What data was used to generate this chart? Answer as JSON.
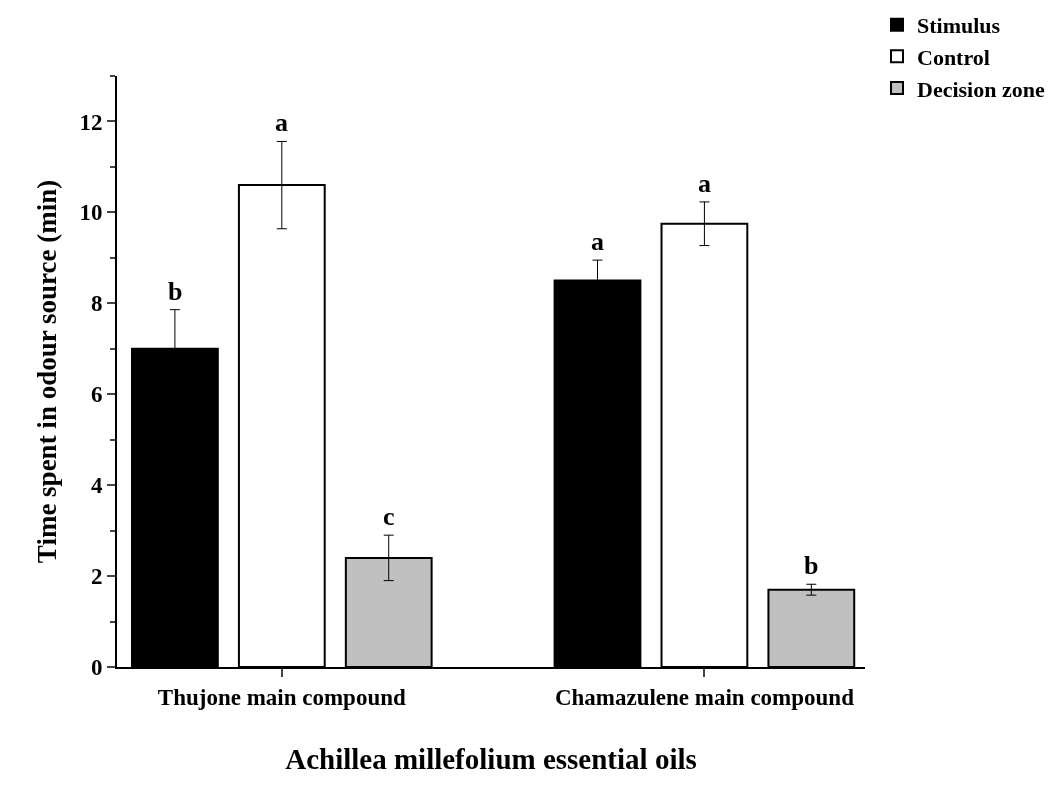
{
  "chart_data": {
    "type": "bar",
    "xlabel": "Achillea millefolium essential oils",
    "ylabel": "Time spent in odour source (min)",
    "categories": [
      "Thujone main compound",
      "Chamazulene main compound"
    ],
    "series": [
      {
        "name": "Stimulus",
        "color": "#000000",
        "values": [
          7.0,
          8.5
        ],
        "errors": [
          0.86,
          0.45
        ],
        "value_labels": [
          "b",
          "a"
        ]
      },
      {
        "name": "Control",
        "color": "#ffffff",
        "values": [
          10.6,
          9.75
        ],
        "errors": [
          0.96,
          0.48
        ],
        "value_labels": [
          "a",
          "a"
        ]
      },
      {
        "name": "Decision zone",
        "color": "#c0c0c0",
        "values": [
          2.4,
          1.7
        ],
        "errors": [
          0.5,
          0.12
        ],
        "value_labels": [
          "c",
          "b"
        ]
      }
    ],
    "ylim": [
      0,
      13
    ],
    "yticks": [
      0,
      2,
      4,
      6,
      8,
      10,
      12
    ],
    "legend": "top right"
  }
}
